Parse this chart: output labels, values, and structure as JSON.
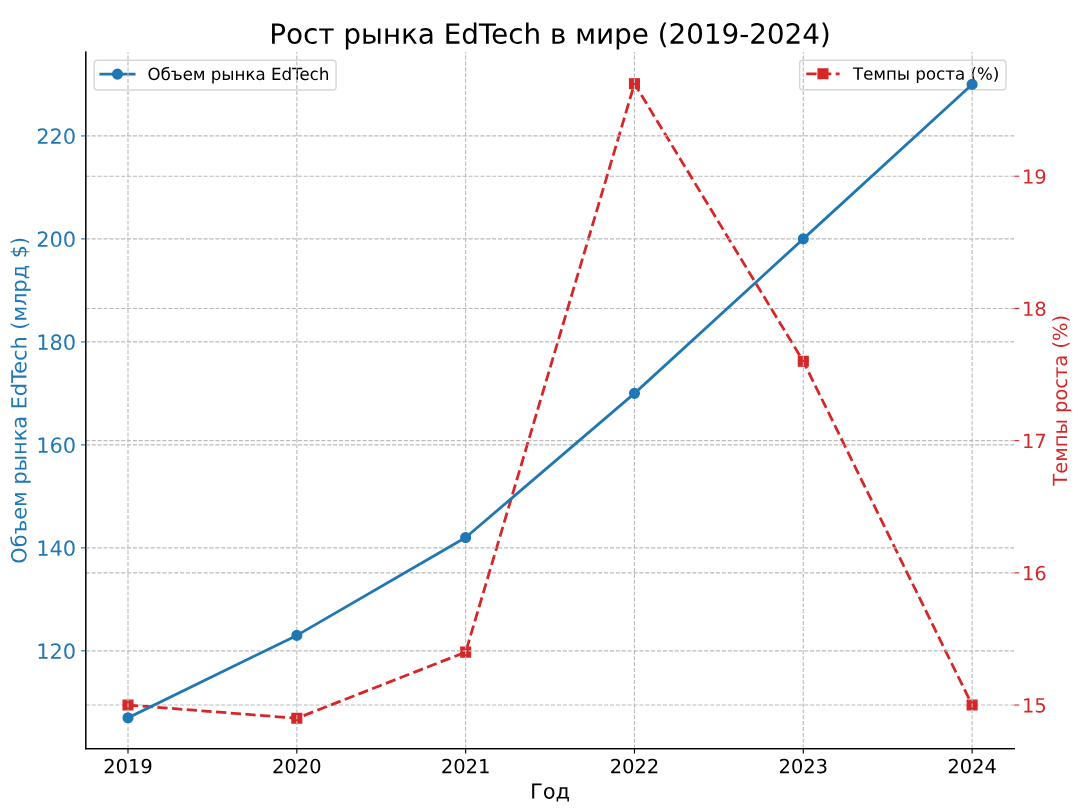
{
  "chart_data": {
    "type": "line",
    "title": "Рост рынка EdTech в мире (2019-2024)",
    "xlabel": "Год",
    "ylabel": "Объем рынка EdTech (млрд $)",
    "y2label": "Темпы роста (%)",
    "x": [
      2019,
      2020,
      2021,
      2022,
      2023,
      2024
    ],
    "series": [
      {
        "name": "Объем рынка EdTech",
        "color": "#1f77b4",
        "values": [
          107,
          123,
          142,
          170,
          200,
          230
        ],
        "marker": "circle",
        "line_style": "solid"
      },
      {
        "name": "Темпы роста (%)",
        "color": "#d62728",
        "values": [
          15.0,
          14.9,
          15.4,
          19.7,
          17.6,
          15.0
        ],
        "axis": "y2",
        "marker": "square",
        "line_style": "dashed"
      }
    ],
    "xlim": [
      2018.75,
      2024.25
    ],
    "xticks": [
      2019,
      2020,
      2021,
      2022,
      2023,
      2024
    ],
    "ylim": [
      101,
      236.3
    ],
    "yticks": [
      120,
      140,
      160,
      180,
      200,
      220
    ],
    "y2lim": [
      14.67,
      19.94
    ],
    "y2ticks": [
      15,
      16,
      17,
      18,
      19
    ],
    "grid": true,
    "legend": "top"
  }
}
